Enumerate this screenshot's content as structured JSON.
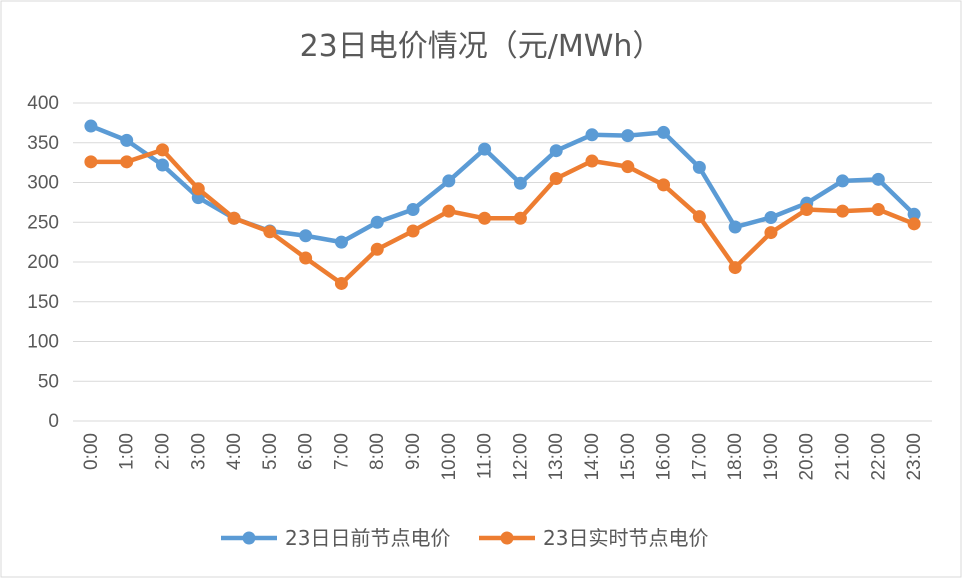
{
  "chart_data": {
    "type": "line",
    "title": "23日电价情况（元/MWh）",
    "xlabel": "",
    "ylabel": "",
    "ylim": [
      0,
      400
    ],
    "yticks": [
      "0",
      "50",
      "100",
      "150",
      "200",
      "250",
      "300",
      "350",
      "400"
    ],
    "grid": true,
    "legend_position": "bottom",
    "categories": [
      "0:00",
      "1:00",
      "2:00",
      "3:00",
      "4:00",
      "5:00",
      "6:00",
      "7:00",
      "8:00",
      "9:00",
      "10:00",
      "11:00",
      "12:00",
      "13:00",
      "14:00",
      "15:00",
      "16:00",
      "17:00",
      "18:00",
      "19:00",
      "20:00",
      "21:00",
      "22:00",
      "23:00"
    ],
    "series": [
      {
        "name": "23日日前节点电价",
        "color": "#5b9bd5",
        "values": [
          371,
          353,
          322,
          281,
          255,
          239,
          233,
          225,
          250,
          266,
          302,
          342,
          299,
          340,
          360,
          359,
          363,
          319,
          244,
          256,
          274,
          302,
          304,
          260
        ]
      },
      {
        "name": "23日实时节点电价",
        "color": "#ed7d31",
        "values": [
          326,
          326,
          341,
          292,
          255,
          238,
          205,
          173,
          216,
          239,
          264,
          255,
          255,
          305,
          327,
          320,
          297,
          257,
          193,
          237,
          266,
          264,
          266,
          248
        ]
      }
    ]
  }
}
